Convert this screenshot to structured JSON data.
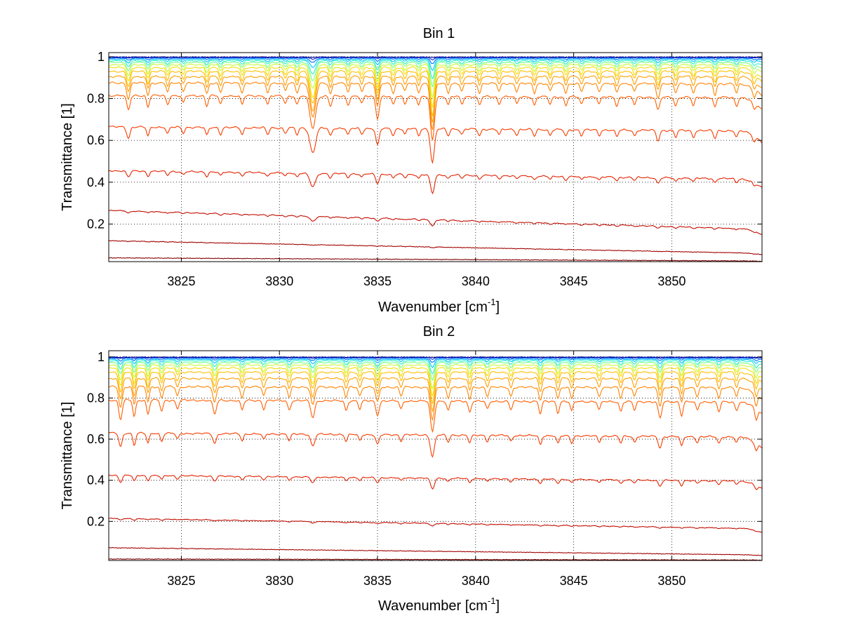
{
  "chart_data": [
    {
      "type": "line",
      "title": "Bin 1",
      "xlabel": "Wavenumber [cm",
      "xlabel_sup": "-1",
      "xlabel_suffix": "]",
      "ylabel": "Transmittance [1]",
      "xlim": [
        3821.3,
        3854.6
      ],
      "ylim": [
        0.02,
        1.02
      ],
      "xticks": [
        3825,
        3830,
        3835,
        3840,
        3845,
        3850
      ],
      "xtick_labels": [
        "3825",
        "3830",
        "3835",
        "3840",
        "3845",
        "3850"
      ],
      "yticks": [
        0.2,
        0.4,
        0.6,
        0.8,
        1
      ],
      "ytick_labels": [
        "0.2",
        "0.4",
        "0.6",
        "0.8",
        "1"
      ],
      "grid": true,
      "colormap": [
        "#00008f",
        "#0040ff",
        "#00bfff",
        "#40ffbf",
        "#bfff40",
        "#ffd700",
        "#ffa500",
        "#ff7f00",
        "#ff4500",
        "#e02000",
        "#b00000",
        "#800000"
      ],
      "line_strengths": [
        {
          "base": 0.038,
          "tilt": 0.015,
          "amp": 0.02
        },
        {
          "base": 0.12,
          "tilt": 0.06,
          "amp": 0.12
        },
        {
          "base": 0.265,
          "tilt": 0.09,
          "amp": 0.42
        },
        {
          "base": 0.455,
          "tilt": 0.04,
          "amp": 0.72
        },
        {
          "base": 0.665,
          "tilt": 0.02,
          "amp": 0.9
        },
        {
          "base": 0.815,
          "tilt": 0.01,
          "amp": 0.95
        },
        {
          "base": 0.875,
          "tilt": 0.005,
          "amp": 0.95
        },
        {
          "base": 0.905,
          "tilt": 0.0,
          "amp": 0.9
        },
        {
          "base": 0.93,
          "tilt": 0.0,
          "amp": 0.85
        },
        {
          "base": 0.948,
          "tilt": 0.0,
          "amp": 0.75
        },
        {
          "base": 0.962,
          "tilt": 0.0,
          "amp": 0.6
        },
        {
          "base": 0.973,
          "tilt": 0.0,
          "amp": 0.45
        },
        {
          "base": 0.981,
          "tilt": 0.0,
          "amp": 0.32
        },
        {
          "base": 0.988,
          "tilt": 0.0,
          "amp": 0.2
        },
        {
          "base": 0.993,
          "tilt": 0.0,
          "amp": 0.1
        },
        {
          "base": 0.997,
          "tilt": 0.0,
          "amp": 0.04
        },
        {
          "base": 0.999,
          "tilt": 0.0,
          "amp": 0.01
        }
      ],
      "absorption_lines": [
        {
          "x": 3822.3,
          "depth": 0.1,
          "width": 0.12
        },
        {
          "x": 3823.3,
          "depth": 0.08,
          "width": 0.1
        },
        {
          "x": 3824.3,
          "depth": 0.06,
          "width": 0.1
        },
        {
          "x": 3825.1,
          "depth": 0.05,
          "width": 0.1
        },
        {
          "x": 3826.3,
          "depth": 0.07,
          "width": 0.1
        },
        {
          "x": 3827.0,
          "depth": 0.06,
          "width": 0.1
        },
        {
          "x": 3828.1,
          "depth": 0.06,
          "width": 0.1
        },
        {
          "x": 3829.4,
          "depth": 0.06,
          "width": 0.1
        },
        {
          "x": 3830.3,
          "depth": 0.05,
          "width": 0.1
        },
        {
          "x": 3830.9,
          "depth": 0.06,
          "width": 0.1
        },
        {
          "x": 3831.7,
          "depth": 0.22,
          "width": 0.2
        },
        {
          "x": 3832.6,
          "depth": 0.07,
          "width": 0.1
        },
        {
          "x": 3833.5,
          "depth": 0.06,
          "width": 0.1
        },
        {
          "x": 3834.2,
          "depth": 0.05,
          "width": 0.1
        },
        {
          "x": 3835.0,
          "depth": 0.15,
          "width": 0.12
        },
        {
          "x": 3835.8,
          "depth": 0.06,
          "width": 0.1
        },
        {
          "x": 3836.4,
          "depth": 0.05,
          "width": 0.1
        },
        {
          "x": 3837.1,
          "depth": 0.06,
          "width": 0.1
        },
        {
          "x": 3837.8,
          "depth": 0.3,
          "width": 0.14
        },
        {
          "x": 3838.6,
          "depth": 0.06,
          "width": 0.1
        },
        {
          "x": 3839.3,
          "depth": 0.05,
          "width": 0.1
        },
        {
          "x": 3840.2,
          "depth": 0.06,
          "width": 0.1
        },
        {
          "x": 3841.2,
          "depth": 0.05,
          "width": 0.1
        },
        {
          "x": 3842.1,
          "depth": 0.05,
          "width": 0.1
        },
        {
          "x": 3843.0,
          "depth": 0.06,
          "width": 0.1
        },
        {
          "x": 3843.8,
          "depth": 0.05,
          "width": 0.1
        },
        {
          "x": 3844.6,
          "depth": 0.06,
          "width": 0.1
        },
        {
          "x": 3845.4,
          "depth": 0.05,
          "width": 0.1
        },
        {
          "x": 3846.3,
          "depth": 0.05,
          "width": 0.1
        },
        {
          "x": 3847.2,
          "depth": 0.06,
          "width": 0.1
        },
        {
          "x": 3848.1,
          "depth": 0.05,
          "width": 0.1
        },
        {
          "x": 3849.3,
          "depth": 0.09,
          "width": 0.12
        },
        {
          "x": 3850.2,
          "depth": 0.06,
          "width": 0.1
        },
        {
          "x": 3851.1,
          "depth": 0.06,
          "width": 0.1
        },
        {
          "x": 3852.2,
          "depth": 0.07,
          "width": 0.1
        },
        {
          "x": 3853.3,
          "depth": 0.06,
          "width": 0.1
        },
        {
          "x": 3854.2,
          "depth": 0.05,
          "width": 0.1
        }
      ]
    },
    {
      "type": "line",
      "title": "Bin 2",
      "xlabel": "Wavenumber [cm",
      "xlabel_sup": "-1",
      "xlabel_suffix": "]",
      "ylabel": "Transmittance [1]",
      "xlim": [
        3821.3,
        3854.6
      ],
      "ylim": [
        0.01,
        1.03
      ],
      "xticks": [
        3825,
        3830,
        3835,
        3840,
        3845,
        3850
      ],
      "xtick_labels": [
        "3825",
        "3830",
        "3835",
        "3840",
        "3845",
        "3850"
      ],
      "yticks": [
        0.2,
        0.4,
        0.6,
        0.8,
        1
      ],
      "ytick_labels": [
        "0.2",
        "0.4",
        "0.6",
        "0.8",
        "1"
      ],
      "grid": true,
      "colormap": [
        "#00008f",
        "#0040ff",
        "#00bfff",
        "#40ffbf",
        "#bfff40",
        "#ffd700",
        "#ffa500",
        "#ff7f00",
        "#ff4500",
        "#e02000",
        "#b00000",
        "#800000"
      ],
      "line_strengths": [
        {
          "base": 0.017,
          "tilt": 0.005,
          "amp": 0.01
        },
        {
          "base": 0.072,
          "tilt": 0.035,
          "amp": 0.06
        },
        {
          "base": 0.215,
          "tilt": 0.05,
          "amp": 0.3
        },
        {
          "base": 0.425,
          "tilt": 0.03,
          "amp": 0.62
        },
        {
          "base": 0.63,
          "tilt": 0.02,
          "amp": 0.85
        },
        {
          "base": 0.79,
          "tilt": 0.01,
          "amp": 0.95
        },
        {
          "base": 0.855,
          "tilt": 0.005,
          "amp": 0.95
        },
        {
          "base": 0.895,
          "tilt": 0.0,
          "amp": 0.9
        },
        {
          "base": 0.925,
          "tilt": 0.0,
          "amp": 0.82
        },
        {
          "base": 0.945,
          "tilt": 0.0,
          "amp": 0.72
        },
        {
          "base": 0.96,
          "tilt": 0.0,
          "amp": 0.6
        },
        {
          "base": 0.972,
          "tilt": 0.0,
          "amp": 0.45
        },
        {
          "base": 0.981,
          "tilt": 0.0,
          "amp": 0.32
        },
        {
          "base": 0.988,
          "tilt": 0.0,
          "amp": 0.2
        },
        {
          "base": 0.993,
          "tilt": 0.0,
          "amp": 0.1
        },
        {
          "base": 0.997,
          "tilt": 0.0,
          "amp": 0.04
        },
        {
          "base": 0.999,
          "tilt": 0.0,
          "amp": 0.01
        }
      ],
      "absorption_lines": [
        {
          "x": 3821.9,
          "depth": 0.14,
          "width": 0.12
        },
        {
          "x": 3822.6,
          "depth": 0.12,
          "width": 0.1
        },
        {
          "x": 3823.3,
          "depth": 0.1,
          "width": 0.1
        },
        {
          "x": 3824.0,
          "depth": 0.08,
          "width": 0.1
        },
        {
          "x": 3824.8,
          "depth": 0.06,
          "width": 0.1
        },
        {
          "x": 3826.7,
          "depth": 0.1,
          "width": 0.12
        },
        {
          "x": 3828.1,
          "depth": 0.07,
          "width": 0.1
        },
        {
          "x": 3829.2,
          "depth": 0.06,
          "width": 0.1
        },
        {
          "x": 3830.5,
          "depth": 0.07,
          "width": 0.1
        },
        {
          "x": 3831.7,
          "depth": 0.12,
          "width": 0.14
        },
        {
          "x": 3833.4,
          "depth": 0.07,
          "width": 0.1
        },
        {
          "x": 3834.1,
          "depth": 0.06,
          "width": 0.1
        },
        {
          "x": 3835.0,
          "depth": 0.1,
          "width": 0.12
        },
        {
          "x": 3836.2,
          "depth": 0.06,
          "width": 0.1
        },
        {
          "x": 3837.8,
          "depth": 0.22,
          "width": 0.14
        },
        {
          "x": 3838.6,
          "depth": 0.07,
          "width": 0.1
        },
        {
          "x": 3839.7,
          "depth": 0.08,
          "width": 0.1
        },
        {
          "x": 3840.6,
          "depth": 0.06,
          "width": 0.1
        },
        {
          "x": 3841.8,
          "depth": 0.06,
          "width": 0.1
        },
        {
          "x": 3843.3,
          "depth": 0.09,
          "width": 0.1
        },
        {
          "x": 3844.2,
          "depth": 0.08,
          "width": 0.1
        },
        {
          "x": 3844.9,
          "depth": 0.07,
          "width": 0.1
        },
        {
          "x": 3846.3,
          "depth": 0.06,
          "width": 0.1
        },
        {
          "x": 3847.4,
          "depth": 0.07,
          "width": 0.1
        },
        {
          "x": 3848.1,
          "depth": 0.06,
          "width": 0.1
        },
        {
          "x": 3849.4,
          "depth": 0.12,
          "width": 0.12
        },
        {
          "x": 3850.5,
          "depth": 0.1,
          "width": 0.1
        },
        {
          "x": 3851.3,
          "depth": 0.06,
          "width": 0.1
        },
        {
          "x": 3852.4,
          "depth": 0.07,
          "width": 0.1
        },
        {
          "x": 3853.3,
          "depth": 0.06,
          "width": 0.1
        },
        {
          "x": 3854.3,
          "depth": 0.08,
          "width": 0.1
        }
      ]
    }
  ]
}
